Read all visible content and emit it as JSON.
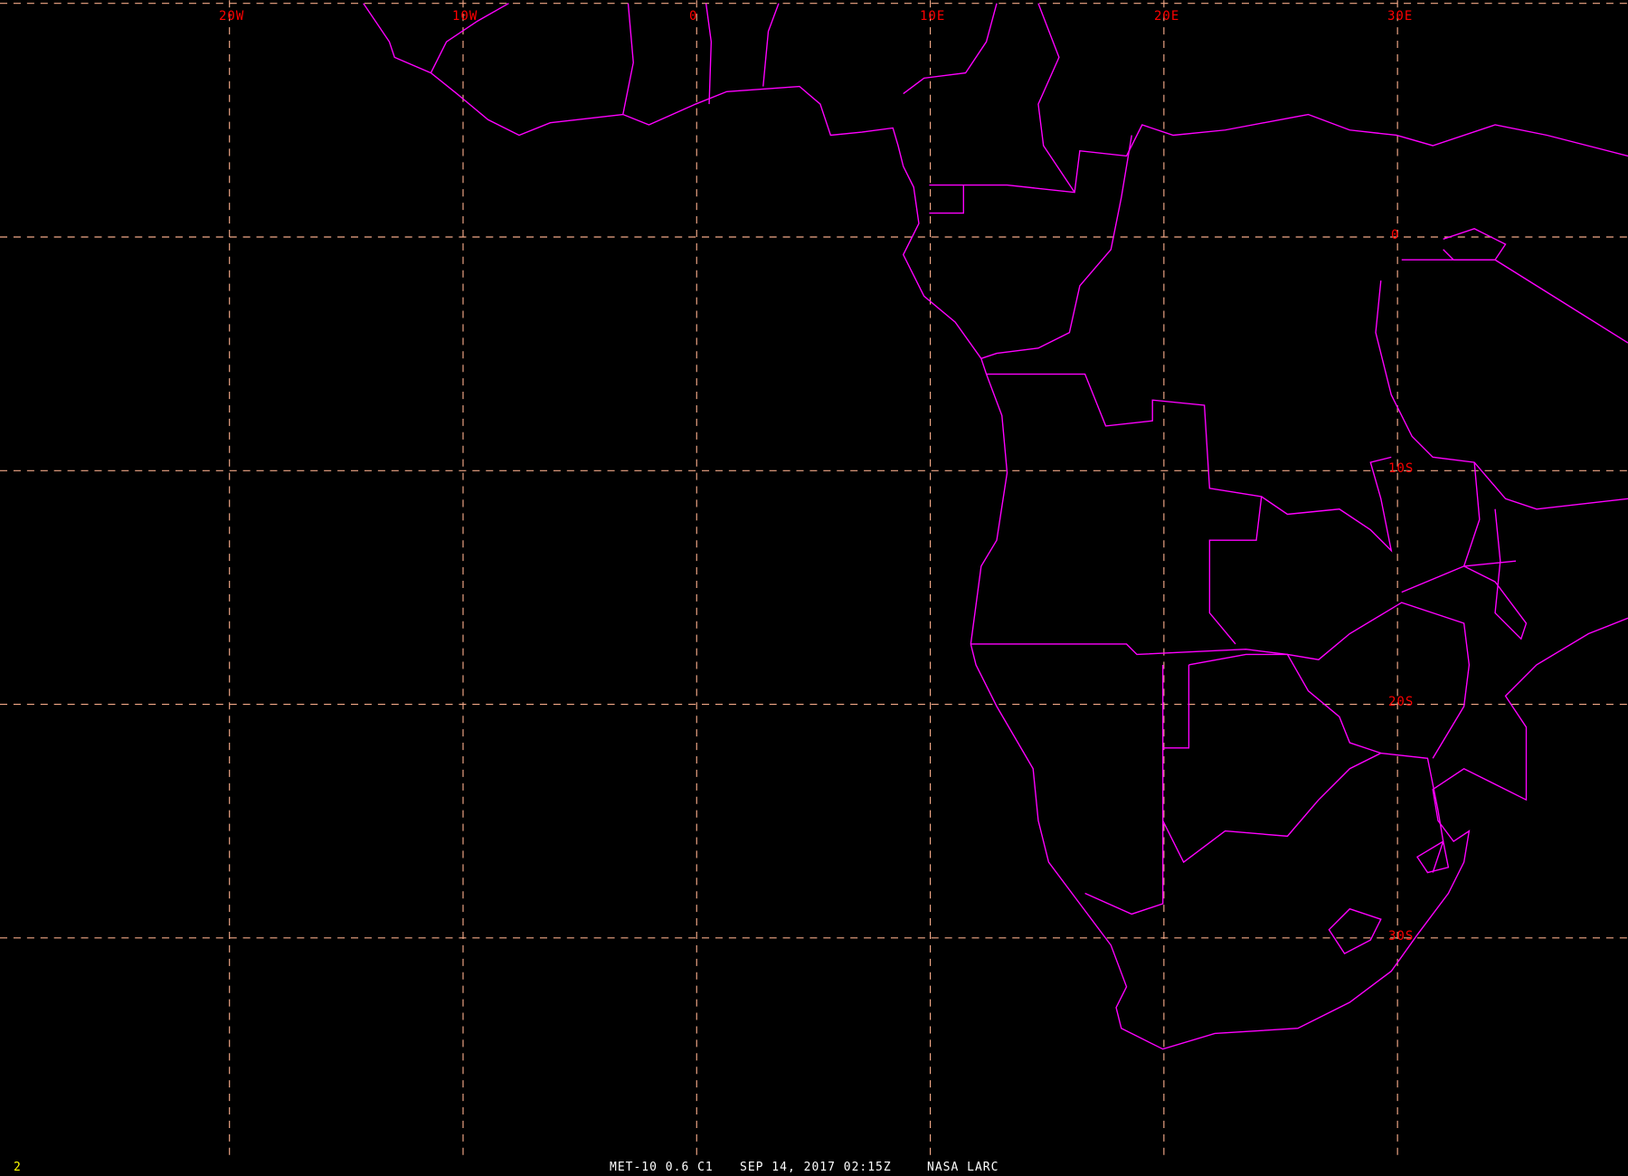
{
  "map": {
    "colors": {
      "background": "#000000",
      "grid": "#f4a988",
      "grid_labels": "#ff0000",
      "boundaries": "#ff00ff",
      "frame_number": "#ffff00",
      "caption": "#ffffff"
    },
    "longitude_labels": [
      "20W",
      "10W",
      "0",
      "10E",
      "20E",
      "30E"
    ],
    "latitude_labels": [
      "0",
      "10S",
      "20S",
      "30S"
    ],
    "frame_number": "2",
    "caption": {
      "satellite_channel": "MET-10 0.6 C1",
      "datetime": "SEP 14, 2017 02:15Z",
      "source": "NASA LARC"
    }
  }
}
